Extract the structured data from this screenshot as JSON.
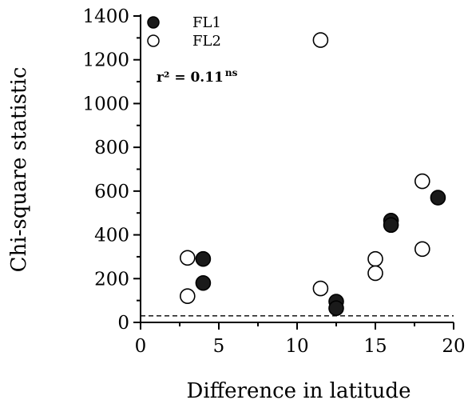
{
  "chart_data": {
    "type": "scatter",
    "title": "",
    "xlabel": "Difference in latitude",
    "ylabel": "Chi-square statistic",
    "xlim": [
      0,
      20
    ],
    "ylim": [
      0,
      1400
    ],
    "xticks": [
      0,
      5,
      10,
      15,
      20
    ],
    "yticks": [
      0,
      200,
      400,
      600,
      800,
      1000,
      1200,
      1400
    ],
    "grid": false,
    "legend_position": "top-left",
    "series": [
      {
        "name": "FL1",
        "marker": "filled-circle",
        "color": "#1a1a1a",
        "points": [
          {
            "x": 4,
            "y": 290
          },
          {
            "x": 4,
            "y": 180
          },
          {
            "x": 12.5,
            "y": 95
          },
          {
            "x": 12.5,
            "y": 65
          },
          {
            "x": 16,
            "y": 465
          },
          {
            "x": 16,
            "y": 445
          },
          {
            "x": 19,
            "y": 570
          }
        ]
      },
      {
        "name": "FL2",
        "marker": "open-circle",
        "color": "#000000",
        "points": [
          {
            "x": 3,
            "y": 295
          },
          {
            "x": 3,
            "y": 120
          },
          {
            "x": 11.5,
            "y": 1290
          },
          {
            "x": 11.5,
            "y": 155
          },
          {
            "x": 15,
            "y": 290
          },
          {
            "x": 15,
            "y": 225
          },
          {
            "x": 18,
            "y": 645
          },
          {
            "x": 18,
            "y": 335
          }
        ]
      }
    ],
    "reference_line": {
      "style": "dashed",
      "y": 30
    },
    "annotation": {
      "text": "r² = 0.11",
      "superscript": "ns"
    }
  }
}
